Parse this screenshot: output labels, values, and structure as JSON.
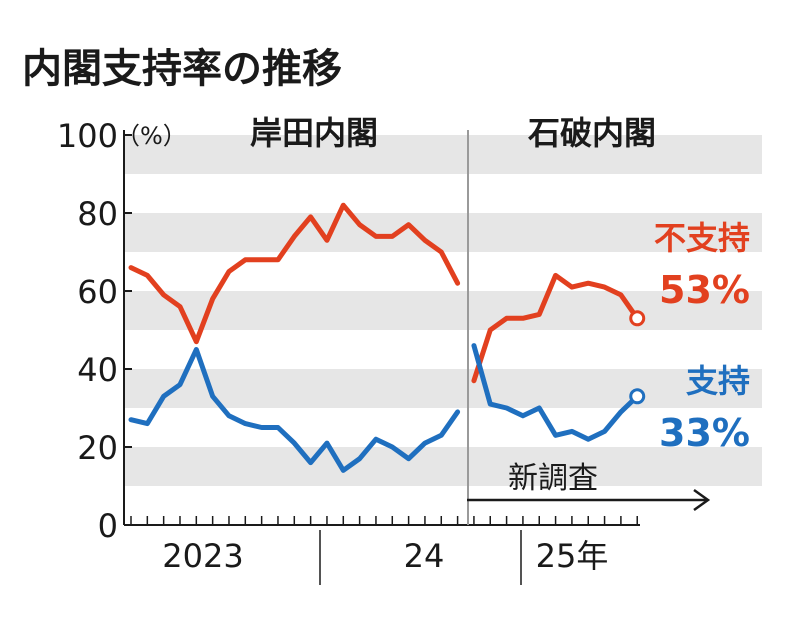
{
  "title": "内閣支持率の推移",
  "unit": "（%）",
  "colors": {
    "disapprove": "#e2401f",
    "approve": "#1f6fbf",
    "band": "#e6e6e6",
    "text": "#1a1a1a"
  },
  "chart_data": {
    "type": "line",
    "title": "内閣支持率の推移",
    "ylabel": "（%）",
    "ylim": [
      0,
      100
    ],
    "yticks": [
      0,
      20,
      40,
      60,
      80,
      100
    ],
    "grid": "alternating horizontal bands",
    "x_labels": [
      "2023",
      "24",
      "25年"
    ],
    "segments": [
      {
        "name": "岸田内閣",
        "series": [
          {
            "name": "不支持",
            "values": [
              66,
              64,
              59,
              56,
              47,
              58,
              65,
              68,
              68,
              68,
              74,
              79,
              73,
              82,
              77,
              74,
              74,
              77,
              73,
              70,
              62
            ]
          },
          {
            "name": "支持",
            "values": [
              27,
              26,
              33,
              36,
              45,
              33,
              28,
              26,
              25,
              25,
              21,
              16,
              21,
              14,
              17,
              22,
              20,
              17,
              21,
              23,
              29
            ]
          }
        ]
      },
      {
        "name": "石破内閣",
        "series": [
          {
            "name": "不支持",
            "values": [
              37,
              50,
              53,
              53,
              54,
              64,
              61,
              62,
              61,
              59,
              53
            ]
          },
          {
            "name": "支持",
            "values": [
              46,
              31,
              30,
              28,
              30,
              23,
              24,
              22,
              24,
              29,
              33
            ]
          }
        ]
      }
    ],
    "annotations": {
      "new_survey": "新調査",
      "disapprove_label": "不支持",
      "disapprove_value": "53%",
      "approve_label": "支持",
      "approve_value": "33%"
    }
  }
}
